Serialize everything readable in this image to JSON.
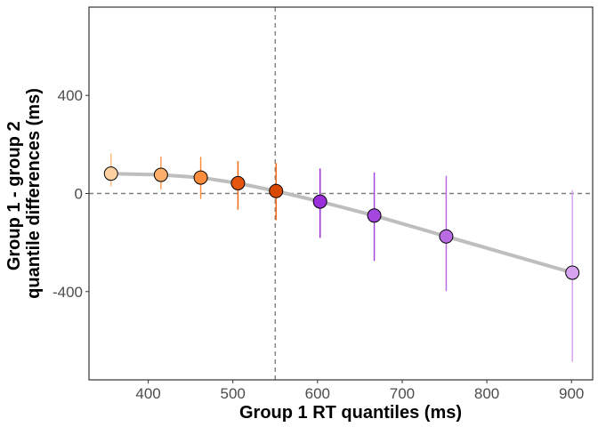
{
  "chart_data": {
    "type": "scatter",
    "title": "",
    "xlabel": "Group 1 RT quantiles (ms)",
    "ylabel_lines": [
      "Group 1 - group 2",
      "quantile differences (ms)"
    ],
    "xlim": [
      330,
      925
    ],
    "ylim": [
      -760,
      760
    ],
    "x_ticks": [
      400,
      500,
      600,
      700,
      800,
      900
    ],
    "y_ticks": [
      -400,
      0,
      400
    ],
    "grid": false,
    "reference_lines": {
      "vertical_x": 550,
      "horizontal_y": 0
    },
    "points": [
      {
        "x": 356,
        "y": 81,
        "lower": 29,
        "upper": 163,
        "fill": "#FDD0A2",
        "bar": "#FDBE85"
      },
      {
        "x": 415,
        "y": 76,
        "lower": 17,
        "upper": 150,
        "fill": "#FDAE6B",
        "bar": "#FD9A55"
      },
      {
        "x": 462,
        "y": 65,
        "lower": -22,
        "upper": 149,
        "fill": "#FD8D3C",
        "bar": "#FD8D3C"
      },
      {
        "x": 506,
        "y": 42,
        "lower": -66,
        "upper": 132,
        "fill": "#E6550D",
        "bar": "#F16913"
      },
      {
        "x": 551,
        "y": 10,
        "lower": -109,
        "upper": 124,
        "fill": "#D94801",
        "bar": "#F16913"
      },
      {
        "x": 603,
        "y": -33,
        "lower": -181,
        "upper": 102,
        "fill": "#9A2EDB",
        "bar": "#9A2EDB"
      },
      {
        "x": 667,
        "y": -90,
        "lower": -275,
        "upper": 86,
        "fill": "#A347DE",
        "bar": "#A347DE"
      },
      {
        "x": 752,
        "y": -175,
        "lower": -398,
        "upper": 72,
        "fill": "#B86BE3",
        "bar": "#B86BE3"
      },
      {
        "x": 901,
        "y": -323,
        "lower": -686,
        "upper": 13,
        "fill": "#D7A3F0",
        "bar": "#D7A3F0"
      }
    ],
    "colors": {
      "panel_border": "#333333",
      "trend_line": "#BEBEBE",
      "reference_line": "#808080",
      "tick": "#333333",
      "point_outline": "#000000"
    }
  }
}
